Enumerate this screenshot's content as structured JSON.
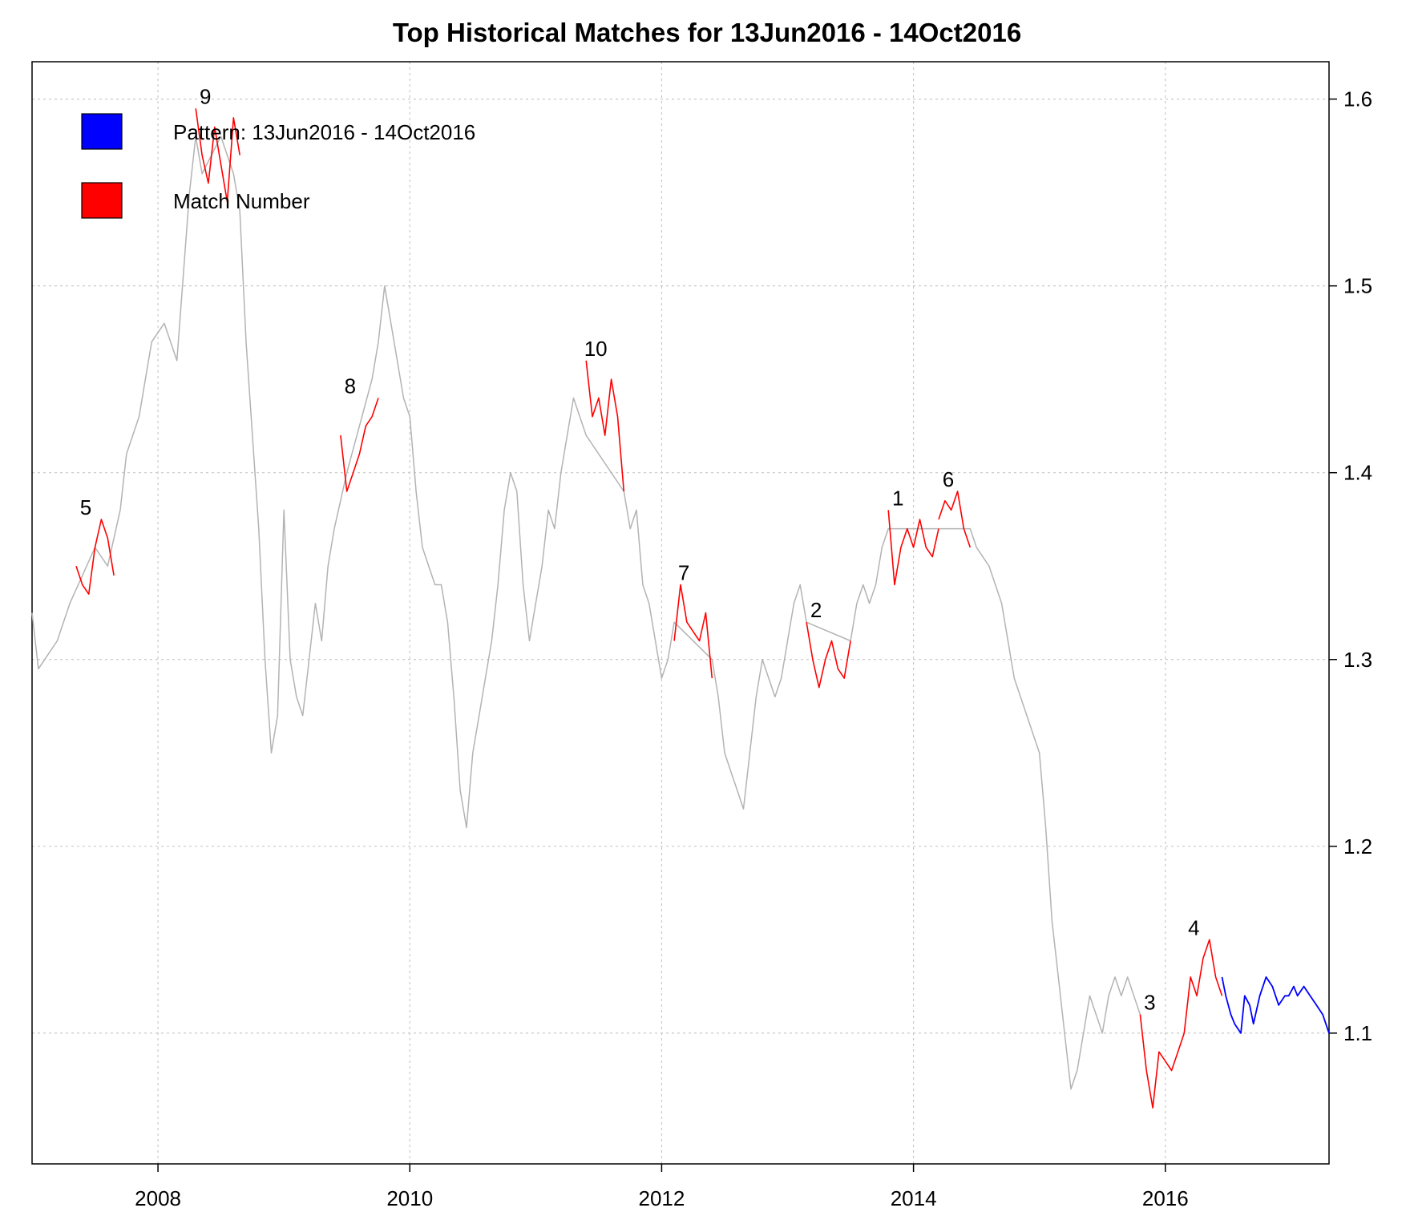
{
  "chart_data": {
    "type": "line",
    "title": "Top Historical Matches for  13Jun2016 - 14Oct2016",
    "xlabel": "",
    "ylabel": "",
    "xlim": [
      2007.0,
      2017.3
    ],
    "ylim": [
      1.03,
      1.62
    ],
    "x_ticks": [
      2008,
      2010,
      2012,
      2014,
      2016
    ],
    "x_tick_labels": [
      "2008",
      "2010",
      "2012",
      "2014",
      "2016"
    ],
    "y_ticks": [
      1.1,
      1.2,
      1.3,
      1.4,
      1.5,
      1.6
    ],
    "y_tick_labels": [
      "1.1",
      "1.2",
      "1.3",
      "1.4",
      "1.5",
      "1.6"
    ],
    "grid": true,
    "y_axis_side": "right",
    "legend": {
      "placement": "top-left",
      "entries": [
        {
          "label": "Pattern:   13Jun2016 - 14Oct2016",
          "color": "#0000ff"
        },
        {
          "label": "Match Number",
          "color": "#ff0000"
        }
      ]
    },
    "series": [
      {
        "role": "history",
        "color": "#b3b3b3",
        "x": [
          2007.0,
          2007.05,
          2007.1,
          2007.2,
          2007.3,
          2007.4,
          2007.5,
          2007.6,
          2007.7,
          2007.75,
          2007.85,
          2007.95,
          2008.05,
          2008.15,
          2008.25,
          2008.3,
          2008.35,
          2008.5,
          2008.6,
          2008.65,
          2008.7,
          2008.75,
          2008.8,
          2008.85,
          2008.9,
          2008.95,
          2009.0,
          2009.05,
          2009.1,
          2009.15,
          2009.2,
          2009.25,
          2009.3,
          2009.35,
          2009.4,
          2009.5,
          2009.7,
          2009.75,
          2009.8,
          2009.85,
          2009.9,
          2009.95,
          2010.0,
          2010.05,
          2010.1,
          2010.15,
          2010.2,
          2010.25,
          2010.3,
          2010.35,
          2010.4,
          2010.45,
          2010.5,
          2010.55,
          2010.6,
          2010.65,
          2010.7,
          2010.75,
          2010.8,
          2010.85,
          2010.9,
          2010.95,
          2011.0,
          2011.05,
          2011.1,
          2011.15,
          2011.2,
          2011.25,
          2011.3,
          2011.35,
          2011.4,
          2011.7,
          2011.75,
          2011.8,
          2011.85,
          2011.9,
          2011.95,
          2012.0,
          2012.05,
          2012.1,
          2012.4,
          2012.45,
          2012.5,
          2012.55,
          2012.6,
          2012.65,
          2012.7,
          2012.75,
          2012.8,
          2012.85,
          2012.9,
          2012.95,
          2013.0,
          2013.05,
          2013.1,
          2013.15,
          2013.5,
          2013.55,
          2013.6,
          2013.65,
          2013.7,
          2013.75,
          2013.8,
          2013.85,
          2014.45,
          2014.5,
          2014.6,
          2014.7,
          2014.8,
          2014.9,
          2015.0,
          2015.05,
          2015.1,
          2015.15,
          2015.2,
          2015.25,
          2015.3,
          2015.35,
          2015.4,
          2015.45,
          2015.5,
          2015.55,
          2015.6,
          2015.65,
          2015.7,
          2015.75,
          2015.8
        ],
        "y": [
          1.325,
          1.295,
          1.3,
          1.31,
          1.33,
          1.345,
          1.36,
          1.35,
          1.38,
          1.41,
          1.43,
          1.47,
          1.48,
          1.46,
          1.55,
          1.58,
          1.56,
          1.58,
          1.56,
          1.54,
          1.47,
          1.42,
          1.37,
          1.3,
          1.25,
          1.27,
          1.38,
          1.3,
          1.28,
          1.27,
          1.3,
          1.33,
          1.31,
          1.35,
          1.37,
          1.4,
          1.45,
          1.47,
          1.5,
          1.48,
          1.46,
          1.44,
          1.43,
          1.39,
          1.36,
          1.35,
          1.34,
          1.34,
          1.32,
          1.28,
          1.23,
          1.21,
          1.25,
          1.27,
          1.29,
          1.31,
          1.34,
          1.38,
          1.4,
          1.39,
          1.34,
          1.31,
          1.33,
          1.35,
          1.38,
          1.37,
          1.4,
          1.42,
          1.44,
          1.43,
          1.42,
          1.39,
          1.37,
          1.38,
          1.34,
          1.33,
          1.31,
          1.29,
          1.3,
          1.32,
          1.3,
          1.28,
          1.25,
          1.24,
          1.23,
          1.22,
          1.25,
          1.28,
          1.3,
          1.29,
          1.28,
          1.29,
          1.31,
          1.33,
          1.34,
          1.32,
          1.31,
          1.33,
          1.34,
          1.33,
          1.34,
          1.36,
          1.37,
          1.37,
          1.37,
          1.36,
          1.35,
          1.33,
          1.29,
          1.27,
          1.25,
          1.21,
          1.16,
          1.13,
          1.1,
          1.07,
          1.08,
          1.1,
          1.12,
          1.11,
          1.1,
          1.12,
          1.13,
          1.12,
          1.13,
          1.12,
          1.11
        ]
      },
      {
        "role": "pattern",
        "name": "Pattern:   13Jun2016 - 14Oct2016",
        "color": "#0000ff",
        "x": [
          2016.45,
          2016.48,
          2016.52,
          2016.55,
          2016.6,
          2016.63,
          2016.67,
          2016.7,
          2016.75,
          2016.8,
          2016.85,
          2016.9,
          2016.95,
          2016.98,
          2017.02,
          2017.05,
          2017.1,
          2017.15,
          2017.2,
          2017.25,
          2017.3
        ],
        "y": [
          1.13,
          1.12,
          1.11,
          1.105,
          1.1,
          1.12,
          1.115,
          1.105,
          1.12,
          1.13,
          1.125,
          1.115,
          1.12,
          1.12,
          1.125,
          1.12,
          1.125,
          1.12,
          1.115,
          1.11,
          1.1
        ]
      }
    ],
    "matches": [
      {
        "label": "1",
        "x": [
          2013.8,
          2013.85,
          2013.9,
          2013.95,
          2014.0,
          2014.05,
          2014.1,
          2014.15,
          2014.2
        ],
        "y": [
          1.38,
          1.34,
          1.36,
          1.37,
          1.36,
          1.375,
          1.36,
          1.355,
          1.37
        ]
      },
      {
        "label": "2",
        "x": [
          2013.15,
          2013.2,
          2013.25,
          2013.3,
          2013.35,
          2013.4,
          2013.45,
          2013.5
        ],
        "y": [
          1.32,
          1.3,
          1.285,
          1.3,
          1.31,
          1.295,
          1.29,
          1.31
        ]
      },
      {
        "label": "3",
        "x": [
          2015.8,
          2015.85,
          2015.9,
          2015.95,
          2016.0,
          2016.05,
          2016.1,
          2016.15
        ],
        "y": [
          1.11,
          1.08,
          1.06,
          1.09,
          1.085,
          1.08,
          1.09,
          1.1
        ]
      },
      {
        "label": "4",
        "x": [
          2016.15,
          2016.2,
          2016.25,
          2016.3,
          2016.35,
          2016.4,
          2016.45
        ],
        "y": [
          1.1,
          1.13,
          1.12,
          1.14,
          1.15,
          1.13,
          1.12
        ]
      },
      {
        "label": "5",
        "x": [
          2007.35,
          2007.4,
          2007.45,
          2007.5,
          2007.55,
          2007.6,
          2007.65
        ],
        "y": [
          1.35,
          1.34,
          1.335,
          1.36,
          1.375,
          1.365,
          1.345
        ]
      },
      {
        "label": "6",
        "x": [
          2014.2,
          2014.25,
          2014.3,
          2014.35,
          2014.4,
          2014.45
        ],
        "y": [
          1.375,
          1.385,
          1.38,
          1.39,
          1.37,
          1.36
        ]
      },
      {
        "label": "7",
        "x": [
          2012.1,
          2012.15,
          2012.2,
          2012.25,
          2012.3,
          2012.35,
          2012.4
        ],
        "y": [
          1.31,
          1.34,
          1.32,
          1.315,
          1.31,
          1.325,
          1.29
        ]
      },
      {
        "label": "8",
        "x": [
          2009.45,
          2009.5,
          2009.55,
          2009.6,
          2009.65,
          2009.7,
          2009.75
        ],
        "y": [
          1.42,
          1.39,
          1.4,
          1.41,
          1.425,
          1.43,
          1.44
        ]
      },
      {
        "label": "9",
        "x": [
          2008.3,
          2008.35,
          2008.4,
          2008.45,
          2008.5,
          2008.55,
          2008.6,
          2008.65
        ],
        "y": [
          1.595,
          1.57,
          1.555,
          1.585,
          1.565,
          1.545,
          1.59,
          1.57
        ]
      },
      {
        "label": "10",
        "x": [
          2011.4,
          2011.45,
          2011.5,
          2011.55,
          2011.6,
          2011.65,
          2011.7
        ],
        "y": [
          1.46,
          1.43,
          1.44,
          1.42,
          1.45,
          1.43,
          1.39
        ]
      }
    ]
  }
}
